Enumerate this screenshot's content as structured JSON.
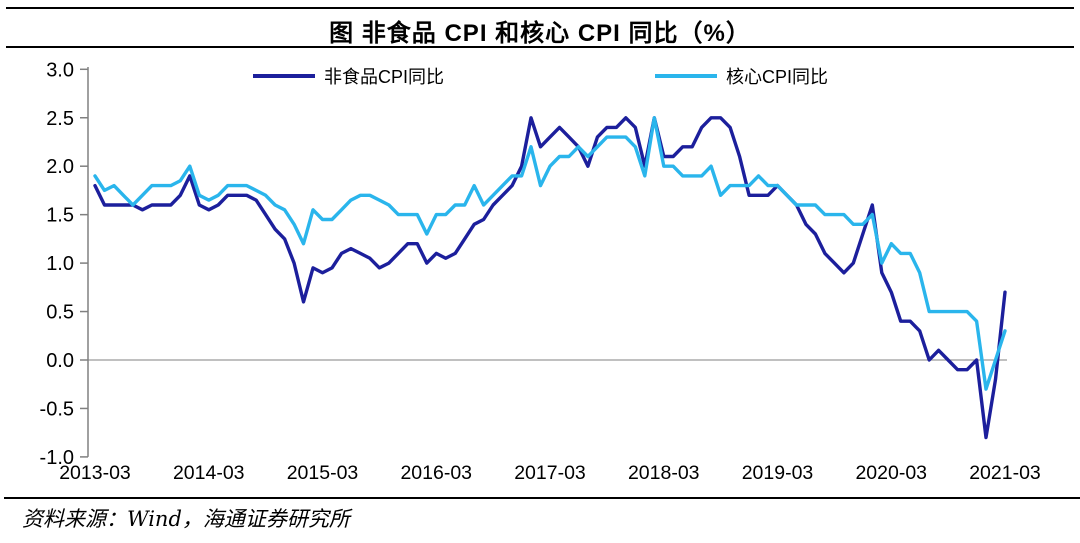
{
  "title": "图 非食品 CPI 和核心 CPI 同比（%）",
  "source": "资料来源：Wind，海通证券研究所",
  "chart_data": {
    "type": "line",
    "x_frequency": "monthly",
    "x_start": "2013-03",
    "x_end": "2021-03",
    "x_tick_labels": [
      "2013-03",
      "2014-03",
      "2015-03",
      "2016-03",
      "2017-03",
      "2018-03",
      "2019-03",
      "2020-03",
      "2021-03"
    ],
    "y_tick_labels": [
      "3.0",
      "2.5",
      "2.0",
      "1.5",
      "1.0",
      "0.5",
      "0.0",
      "-0.5",
      "-1.0"
    ],
    "ylim": [
      -1.0,
      3.0
    ],
    "grid": "zero-line-only",
    "legend_position": "top-inside",
    "axis_color": "#808080",
    "series": [
      {
        "name": "非食品CPI同比",
        "color": "#1C1F9C",
        "values": [
          1.8,
          1.6,
          1.6,
          1.6,
          1.6,
          1.55,
          1.6,
          1.6,
          1.6,
          1.7,
          1.9,
          1.6,
          1.55,
          1.6,
          1.7,
          1.7,
          1.7,
          1.65,
          1.5,
          1.35,
          1.25,
          1.0,
          0.6,
          0.95,
          0.9,
          0.95,
          1.1,
          1.15,
          1.1,
          1.05,
          0.95,
          1.0,
          1.1,
          1.2,
          1.2,
          1.0,
          1.1,
          1.05,
          1.1,
          1.25,
          1.4,
          1.45,
          1.6,
          1.7,
          1.8,
          2.0,
          2.5,
          2.2,
          2.3,
          2.4,
          2.3,
          2.2,
          2.0,
          2.3,
          2.4,
          2.4,
          2.5,
          2.4,
          2.0,
          2.5,
          2.1,
          2.1,
          2.2,
          2.2,
          2.4,
          2.5,
          2.5,
          2.4,
          2.1,
          1.7,
          1.7,
          1.7,
          1.8,
          1.7,
          1.6,
          1.4,
          1.3,
          1.1,
          1.0,
          0.9,
          1.0,
          1.3,
          1.6,
          0.9,
          0.7,
          0.4,
          0.4,
          0.3,
          0.0,
          0.1,
          0.0,
          -0.1,
          -0.1,
          0.0,
          -0.8,
          -0.2,
          0.7
        ]
      },
      {
        "name": "核心CPI同比",
        "color": "#2AB5EC",
        "values": [
          1.9,
          1.75,
          1.8,
          1.7,
          1.6,
          1.7,
          1.8,
          1.8,
          1.8,
          1.85,
          2.0,
          1.7,
          1.65,
          1.7,
          1.8,
          1.8,
          1.8,
          1.75,
          1.7,
          1.6,
          1.55,
          1.4,
          1.2,
          1.55,
          1.45,
          1.45,
          1.55,
          1.65,
          1.7,
          1.7,
          1.65,
          1.6,
          1.5,
          1.5,
          1.5,
          1.3,
          1.5,
          1.5,
          1.6,
          1.6,
          1.8,
          1.6,
          1.7,
          1.8,
          1.9,
          1.9,
          2.2,
          1.8,
          2.0,
          2.1,
          2.1,
          2.2,
          2.1,
          2.2,
          2.3,
          2.3,
          2.3,
          2.2,
          1.9,
          2.5,
          2.0,
          2.0,
          1.9,
          1.9,
          1.9,
          2.0,
          1.7,
          1.8,
          1.8,
          1.8,
          1.9,
          1.8,
          1.8,
          1.7,
          1.6,
          1.6,
          1.6,
          1.5,
          1.5,
          1.5,
          1.4,
          1.4,
          1.5,
          1.0,
          1.2,
          1.1,
          1.1,
          0.9,
          0.5,
          0.5,
          0.5,
          0.5,
          0.5,
          0.4,
          -0.3,
          0.0,
          0.3
        ]
      }
    ]
  }
}
